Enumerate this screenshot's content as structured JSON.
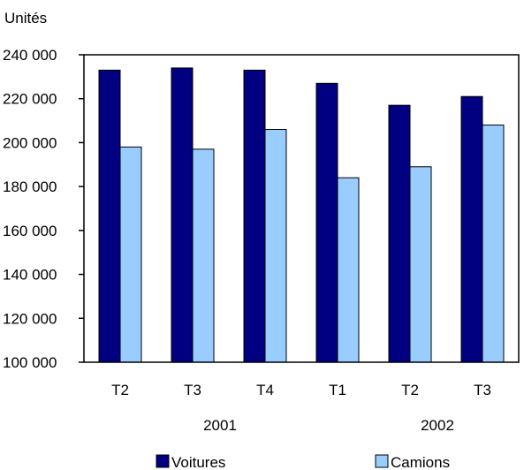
{
  "chart_data": {
    "type": "bar",
    "ylabel": "Unités",
    "ylim": [
      100000,
      240000
    ],
    "yticks": [
      100000,
      120000,
      140000,
      160000,
      180000,
      200000,
      220000,
      240000
    ],
    "ytick_labels": [
      "100 000",
      "120 000",
      "140 000",
      "160 000",
      "180 000",
      "200 000",
      "220 000",
      "240 000"
    ],
    "categories": [
      "T2",
      "T3",
      "T4",
      "T1",
      "T2",
      "T3"
    ],
    "groups": [
      {
        "label": "2001"
      },
      {
        "label": "2002"
      }
    ],
    "series": [
      {
        "name": "Voitures",
        "color": "#000080",
        "values": [
          233000,
          234000,
          233000,
          227000,
          217000,
          221000
        ]
      },
      {
        "name": "Camions",
        "color": "#99ccff",
        "values": [
          198000,
          197000,
          206000,
          184000,
          189000,
          208000
        ]
      }
    ],
    "legend_position": "bottom",
    "grid": false
  }
}
